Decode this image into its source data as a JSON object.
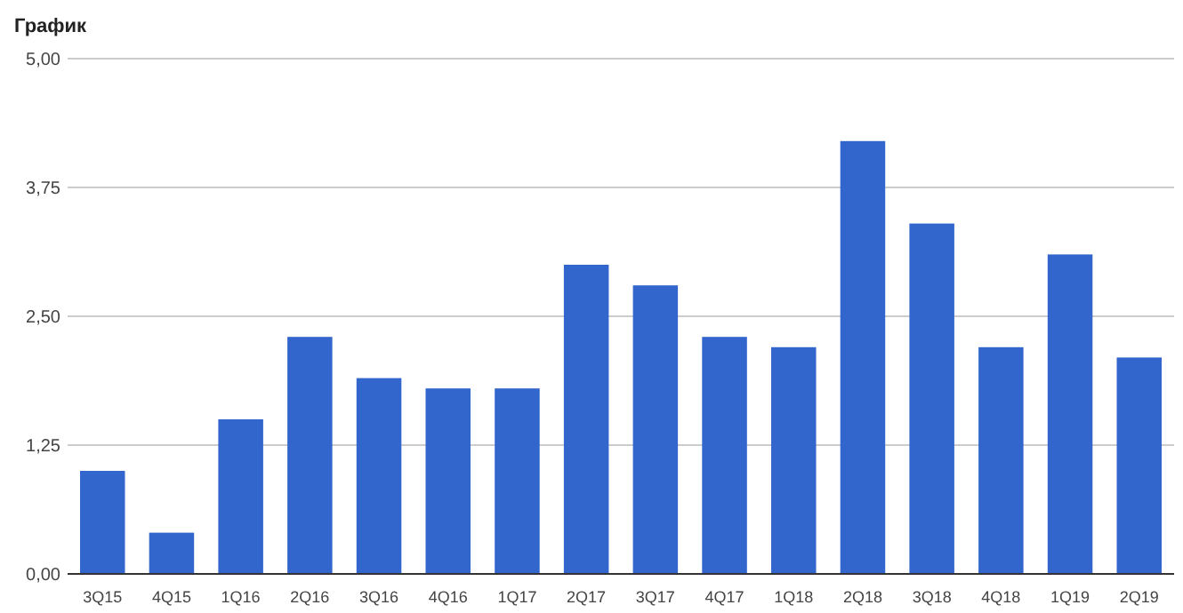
{
  "chart_data": {
    "type": "bar",
    "title": "График",
    "categories": [
      "3Q15",
      "4Q15",
      "1Q16",
      "2Q16",
      "3Q16",
      "4Q16",
      "1Q17",
      "2Q17",
      "3Q17",
      "4Q17",
      "1Q18",
      "2Q18",
      "3Q18",
      "4Q18",
      "1Q19",
      "2Q19"
    ],
    "values": [
      1.0,
      0.4,
      1.5,
      2.3,
      1.9,
      1.8,
      1.8,
      3.0,
      2.8,
      2.3,
      2.2,
      4.2,
      3.4,
      2.2,
      3.1,
      2.1
    ],
    "color": "#3366cc",
    "ylim": [
      0,
      5
    ],
    "yticks": [
      {
        "value": 0,
        "label": "0,00"
      },
      {
        "value": 1.25,
        "label": "1,25"
      },
      {
        "value": 2.5,
        "label": "2,50"
      },
      {
        "value": 3.75,
        "label": "3,75"
      },
      {
        "value": 5,
        "label": "5,00"
      }
    ],
    "grid": true
  }
}
